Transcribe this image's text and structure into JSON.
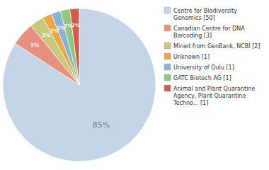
{
  "chart_data": {
    "type": "pie",
    "categories": [
      "Centre for Biodiversity\nGenomics [50]",
      "Canadian Centre for DNA\nBarcoding [3]",
      "Mined from GenBank, NCBI [2]",
      "Unknown [1]",
      "University of Oulu [1]",
      "GATC Biotech AG [1]",
      "Animal and Plant Quarantine\nAgency, Plant Quarantine\nTechno... [1]"
    ],
    "values": [
      85,
      5,
      3,
      2,
      2,
      2,
      2
    ],
    "value_labels": [
      "85%",
      "5%",
      "3%",
      "2%",
      "2%",
      "2%",
      "2%"
    ],
    "colors": [
      "#c5d5e8",
      "#e89080",
      "#c8c87a",
      "#e8a84a",
      "#8ab4d4",
      "#8ec87a",
      "#d45a4a"
    ],
    "data_labels": true,
    "legend": "right"
  }
}
